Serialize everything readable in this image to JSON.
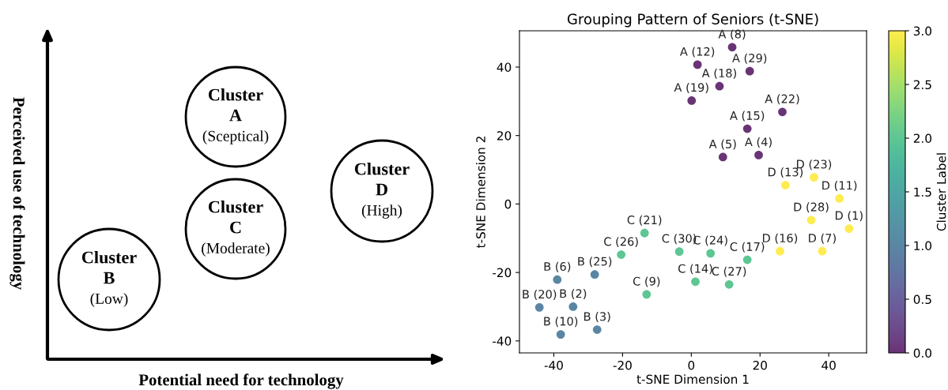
{
  "chart_data": [
    {
      "type": "other",
      "xlabel": "Potential need for technology",
      "ylabel": "Perceived use of technology",
      "annotations": [
        "Cluster\nA\n(Sceptical)",
        "Cluster\nD\n(High)",
        "Cluster\nC\n(Moderate)",
        "Cluster\nB\n(Low)"
      ]
    },
    {
      "type": "scatter",
      "title": "Grouping Pattern of Seniors (t-SNE)",
      "xlabel": "t-SNE Dimension 1",
      "ylabel": "t-SNE Dimension 2",
      "clabel": "Cluster Label",
      "x": [
        11.9,
        1.8,
        17.0,
        8.2,
        0.1,
        26.5,
        16.3,
        9.2,
        19.6,
        27.4,
        35.7,
        43.1,
        34.9,
        45.9,
        25.8,
        38.1,
        -13.6,
        -20.4,
        -3.5,
        5.6,
        16.3,
        1.2,
        11.0,
        -13.0,
        -39.0,
        -28.1,
        -44.2,
        -34.4,
        -38.0,
        -27.4
      ],
      "values": [
        45.8,
        40.7,
        38.8,
        34.4,
        30.2,
        26.9,
        22.0,
        13.7,
        14.3,
        5.5,
        7.8,
        1.6,
        -4.7,
        -7.2,
        -13.8,
        -13.8,
        -8.5,
        -14.8,
        -13.9,
        -14.4,
        -16.3,
        -22.7,
        -23.5,
        -26.4,
        -22.1,
        -20.6,
        -30.2,
        -30.0,
        -38.1,
        -36.7
      ],
      "cvalues": [
        0,
        0,
        0,
        0,
        0,
        0,
        0,
        0,
        0,
        3,
        3,
        3,
        3,
        3,
        3,
        3,
        2,
        2,
        2,
        2,
        2,
        2,
        2,
        2,
        1,
        1,
        1,
        1,
        1,
        1
      ],
      "annotations": [
        {
          "text": "A (8)",
          "x": 11.9,
          "y": 45.8
        },
        {
          "text": "A (12)",
          "x": 1.8,
          "y": 40.7
        },
        {
          "text": "A (29)",
          "x": 17.0,
          "y": 38.8
        },
        {
          "text": "A (18)",
          "x": 8.2,
          "y": 34.4
        },
        {
          "text": "A (19)",
          "x": 0.1,
          "y": 30.2
        },
        {
          "text": "A (22)",
          "x": 26.5,
          "y": 26.9
        },
        {
          "text": "A (15)",
          "x": 16.3,
          "y": 22.0
        },
        {
          "text": "A (5)",
          "x": 9.2,
          "y": 13.7
        },
        {
          "text": "A (4)",
          "x": 19.6,
          "y": 14.3
        },
        {
          "text": "D (13)",
          "x": 27.4,
          "y": 5.5
        },
        {
          "text": "D (23)",
          "x": 35.7,
          "y": 7.8
        },
        {
          "text": "D (11)",
          "x": 43.1,
          "y": 1.6
        },
        {
          "text": "D (28)",
          "x": 34.9,
          "y": -4.7
        },
        {
          "text": "D (1)",
          "x": 45.9,
          "y": -7.2
        },
        {
          "text": "D (16)",
          "x": 25.8,
          "y": -13.8
        },
        {
          "text": "D (7)",
          "x": 38.1,
          "y": -13.8
        },
        {
          "text": "C (21)",
          "x": -13.6,
          "y": -8.5
        },
        {
          "text": "C (26)",
          "x": -20.4,
          "y": -14.8
        },
        {
          "text": "C (30)",
          "x": -3.5,
          "y": -13.9
        },
        {
          "text": "C (24)",
          "x": 5.6,
          "y": -14.4
        },
        {
          "text": "C (17)",
          "x": 16.3,
          "y": -16.3
        },
        {
          "text": "C (14)",
          "x": 1.2,
          "y": -22.7
        },
        {
          "text": "C (27)",
          "x": 11.0,
          "y": -23.5
        },
        {
          "text": "C (9)",
          "x": -13.0,
          "y": -26.4
        },
        {
          "text": "B (6)",
          "x": -39.0,
          "y": -22.1
        },
        {
          "text": "B (25)",
          "x": -28.1,
          "y": -20.6
        },
        {
          "text": "B (20)",
          "x": -44.2,
          "y": -30.2
        },
        {
          "text": "B (2)",
          "x": -34.4,
          "y": -30.0
        },
        {
          "text": "B (10)",
          "x": -38.0,
          "y": -38.1
        },
        {
          "text": "B (3)",
          "x": -27.4,
          "y": -36.7
        }
      ],
      "xlim": [
        -50,
        51
      ],
      "ylim": [
        -43.5,
        50.6
      ],
      "xticks": [
        -40,
        -20,
        0,
        20,
        40
      ],
      "yticks": [
        -40,
        -20,
        0,
        20,
        40
      ],
      "clim": [
        0,
        3
      ],
      "cticks": [
        {
          "value": 0,
          "label": "0.0"
        },
        {
          "value": 0.5,
          "label": "0.5"
        },
        {
          "value": 1,
          "label": "1.0"
        },
        {
          "value": 1.5,
          "label": "1.5"
        },
        {
          "value": 2,
          "label": "2.0"
        },
        {
          "value": 2.5,
          "label": "2.5"
        },
        {
          "value": 3,
          "label": "3.0"
        }
      ],
      "grid": false,
      "marker": "circle"
    }
  ]
}
